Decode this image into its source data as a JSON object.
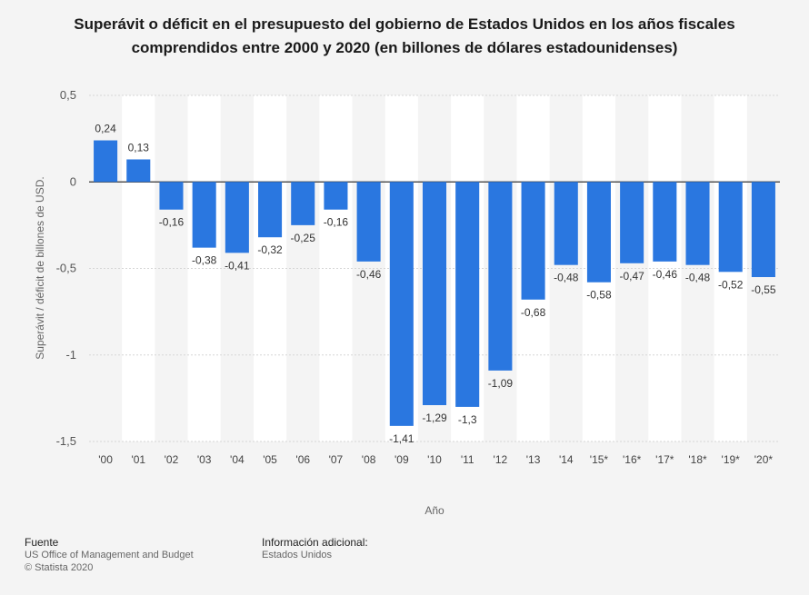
{
  "chart_data": {
    "type": "bar",
    "title": "Superávit o déficit en el presupuesto del gobierno de Estados Unidos en los años fiscales comprendidos entre 2000 y 2020 (en billones de dólares estadounidenses)",
    "xlabel": "Año",
    "ylabel": "Superávit / déficit de billones de USD.",
    "ylim": [
      -1.5,
      0.5
    ],
    "yticks": [
      0.5,
      0,
      -0.5,
      -1,
      -1.5
    ],
    "ytick_labels": [
      "0,5",
      "0",
      "-0,5",
      "-1",
      "-1,5"
    ],
    "categories": [
      "'00",
      "'01",
      "'02",
      "'03",
      "'04",
      "'05",
      "'06",
      "'07",
      "'08",
      "'09",
      "'10",
      "'11",
      "'12",
      "'13",
      "'14",
      "'15*",
      "'16*",
      "'17*",
      "'18*",
      "'19*",
      "'20*"
    ],
    "values": [
      0.24,
      0.13,
      -0.16,
      -0.38,
      -0.41,
      -0.32,
      -0.25,
      -0.16,
      -0.46,
      -1.41,
      -1.29,
      -1.3,
      -1.09,
      -0.68,
      -0.48,
      -0.58,
      -0.47,
      -0.46,
      -0.48,
      -0.52,
      -0.55
    ],
    "value_labels": [
      "0,24",
      "0,13",
      "-0,16",
      "-0,38",
      "-0,41",
      "-0,32",
      "-0,25",
      "-0,16",
      "-0,46",
      "-1,41",
      "-1,29",
      "-1,3",
      "-1,09",
      "-0,68",
      "-0,48",
      "-0,58",
      "-0,47",
      "-0,46",
      "-0,48",
      "-0,52",
      "-0,55"
    ],
    "bar_color": "#2a77e0",
    "grid": true,
    "legend": "none"
  },
  "footer": {
    "source_heading": "Fuente",
    "source_line1": "US Office of Management and Budget",
    "source_line2": "© Statista 2020",
    "info_heading": "Información adicional:",
    "info_line1": "Estados Unidos"
  }
}
